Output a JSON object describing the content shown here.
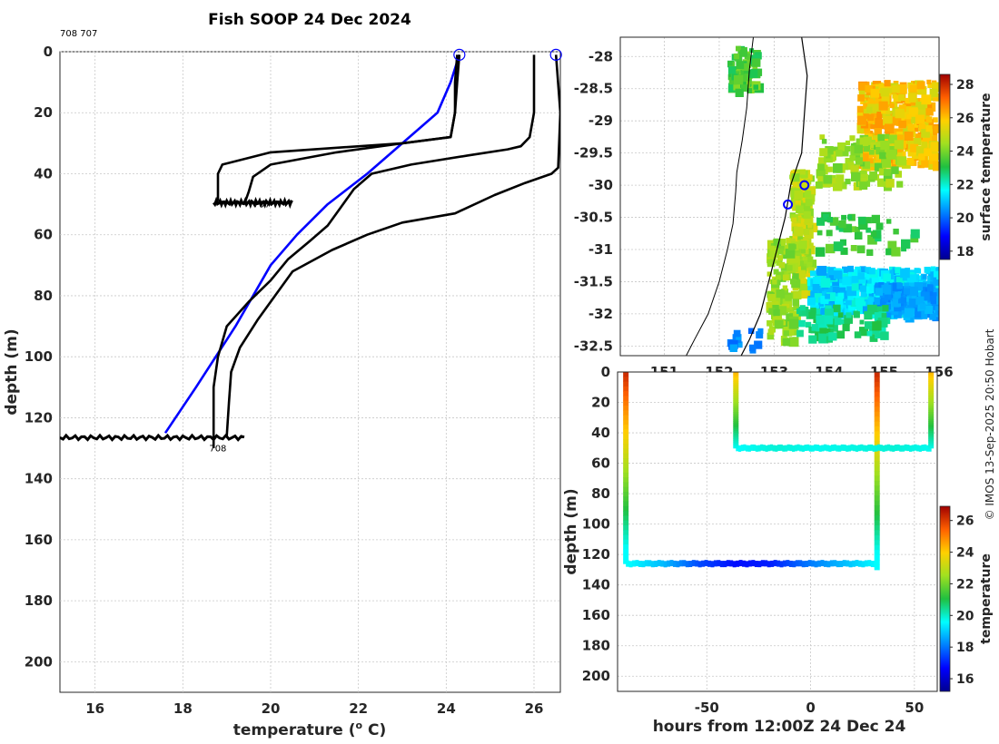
{
  "chart_data": [
    {
      "type": "line",
      "panel": "temperature-profiles",
      "title": "Fish SOOP 24 Dec 2024",
      "xlabel": "temperature (",
      "xlabel_sup": "o",
      "xlabel_tail": " C)",
      "ylabel": "depth (m)",
      "xlim": [
        15.2,
        26.6
      ],
      "ylim": [
        0,
        210
      ],
      "y_reversed": true,
      "xticks": [
        16,
        18,
        20,
        22,
        24,
        26
      ],
      "yticks": [
        0,
        20,
        40,
        60,
        80,
        100,
        120,
        140,
        160,
        180,
        200
      ],
      "grid": true,
      "annotations": [
        {
          "text": "708 707",
          "x": 15.2,
          "y": -5
        },
        {
          "text": "707",
          "x": 19.6,
          "y": 51
        },
        {
          "text": "708",
          "x": 18.6,
          "y": 131
        }
      ],
      "markers": [
        {
          "x": 24.3,
          "y": 1,
          "color": "#0000ff"
        },
        {
          "x": 26.5,
          "y": 1,
          "color": "#0000ff"
        }
      ],
      "series": [
        {
          "color": "#0000ff",
          "x": [
            24.3,
            24.1,
            23.8,
            23.0,
            22.2,
            21.3,
            20.6,
            20.0,
            19.2,
            18.3,
            17.6
          ],
          "y": [
            1,
            10,
            20,
            30,
            40,
            50,
            60,
            70,
            90,
            110,
            125
          ]
        },
        {
          "color": "#000000",
          "x": [
            24.25,
            24.2,
            24.2,
            24.1,
            23.0,
            21.5,
            20.0,
            19.6,
            19.5,
            19.4
          ],
          "y": [
            1,
            10,
            20,
            28,
            30,
            33,
            37,
            41,
            46,
            50
          ]
        },
        {
          "color": "#000000",
          "x": [
            24.3,
            24.25,
            24.2,
            24.1,
            23.0,
            20.0,
            18.9,
            18.8,
            18.8
          ],
          "y": [
            1,
            10,
            20,
            28,
            30,
            33,
            37,
            40,
            49
          ]
        },
        {
          "color": "#000000",
          "x": [
            26.0,
            26.0,
            25.9,
            25.7,
            25.4,
            24.5,
            23.2,
            22.3,
            21.9,
            21.6,
            21.3,
            20.9,
            20.4,
            20.0,
            19.5,
            19.0,
            18.8,
            18.7,
            18.7
          ],
          "y": [
            1,
            20,
            28,
            31,
            32,
            34,
            37,
            40,
            45,
            51,
            57,
            62,
            68,
            75,
            82,
            90,
            100,
            110,
            130
          ]
        },
        {
          "color": "#000000",
          "x": [
            26.5,
            26.6,
            26.55,
            26.4,
            25.8,
            25.1,
            24.2,
            23.0,
            22.2,
            21.4,
            20.5,
            20.1,
            19.7,
            19.3,
            19.1,
            19.05,
            19.0
          ],
          "y": [
            1,
            20,
            38,
            40,
            43,
            47,
            53,
            56,
            60,
            65,
            72,
            80,
            88,
            97,
            105,
            115,
            126
          ]
        }
      ],
      "floor_traces": [
        {
          "x": [
            18.7,
            20.5
          ],
          "y": 49.5
        },
        {
          "x": [
            15.2,
            19.4
          ],
          "y": 126.5
        }
      ]
    },
    {
      "type": "heatmap",
      "panel": "surface-temperature-map",
      "colorbar_label": "surface temperature",
      "colorbar_ticks": [
        18,
        20,
        22,
        24,
        26,
        28
      ],
      "colorbar_range": [
        17.5,
        28.6
      ],
      "xlim": [
        150.2,
        156.0
      ],
      "ylim": [
        -32.65,
        -27.7
      ],
      "xticks": [
        151,
        152,
        153,
        154,
        155,
        156
      ],
      "xtick_labels": [
        "151",
        "152",
        "153",
        "154",
        "155",
        "156"
      ],
      "yticks": [
        -28,
        -28.5,
        -29,
        -29.5,
        -30,
        -30.5,
        -31,
        -31.5,
        -32,
        -32.5
      ],
      "ytick_labels": [
        "-28",
        "-28.5",
        "-29",
        "-29.5",
        "-30",
        "-30.5",
        "-31",
        "-31.5",
        "-32",
        "-32.5"
      ],
      "markers": [
        {
          "lon": 153.55,
          "lat": -30.0
        },
        {
          "lon": 153.25,
          "lat": -30.3
        }
      ]
    },
    {
      "type": "scatter",
      "panel": "depth-time-section",
      "xlabel": "hours from 12:00Z 24 Dec 24",
      "ylabel": "depth (m)",
      "colorbar_label": "temperature",
      "colorbar_ticks": [
        16,
        18,
        20,
        22,
        24,
        26
      ],
      "colorbar_range": [
        15.2,
        26.9
      ],
      "xlim": [
        -93,
        61
      ],
      "ylim": [
        0,
        210
      ],
      "y_reversed": true,
      "xticks": [
        -50,
        0,
        50
      ],
      "yticks": [
        0,
        20,
        40,
        60,
        80,
        100,
        120,
        140,
        160,
        180,
        200
      ],
      "casts": [
        {
          "x0": -89,
          "x1": 32,
          "bottom": 126,
          "top_temp": 26.2,
          "bottom_temps": [
            19.6,
            18.8,
            17.5,
            16.8,
            17.0,
            18.0,
            18.8,
            19.6
          ]
        },
        {
          "x0": -36,
          "x1": 58,
          "bottom": 50,
          "top_temp": 24.3,
          "bottom_temps": [
            19.6,
            19.9,
            19.7,
            19.8,
            19.9,
            19.7
          ]
        }
      ]
    }
  ],
  "credit": "© IMOS 13-Sep-2025 20:50 Hobart"
}
